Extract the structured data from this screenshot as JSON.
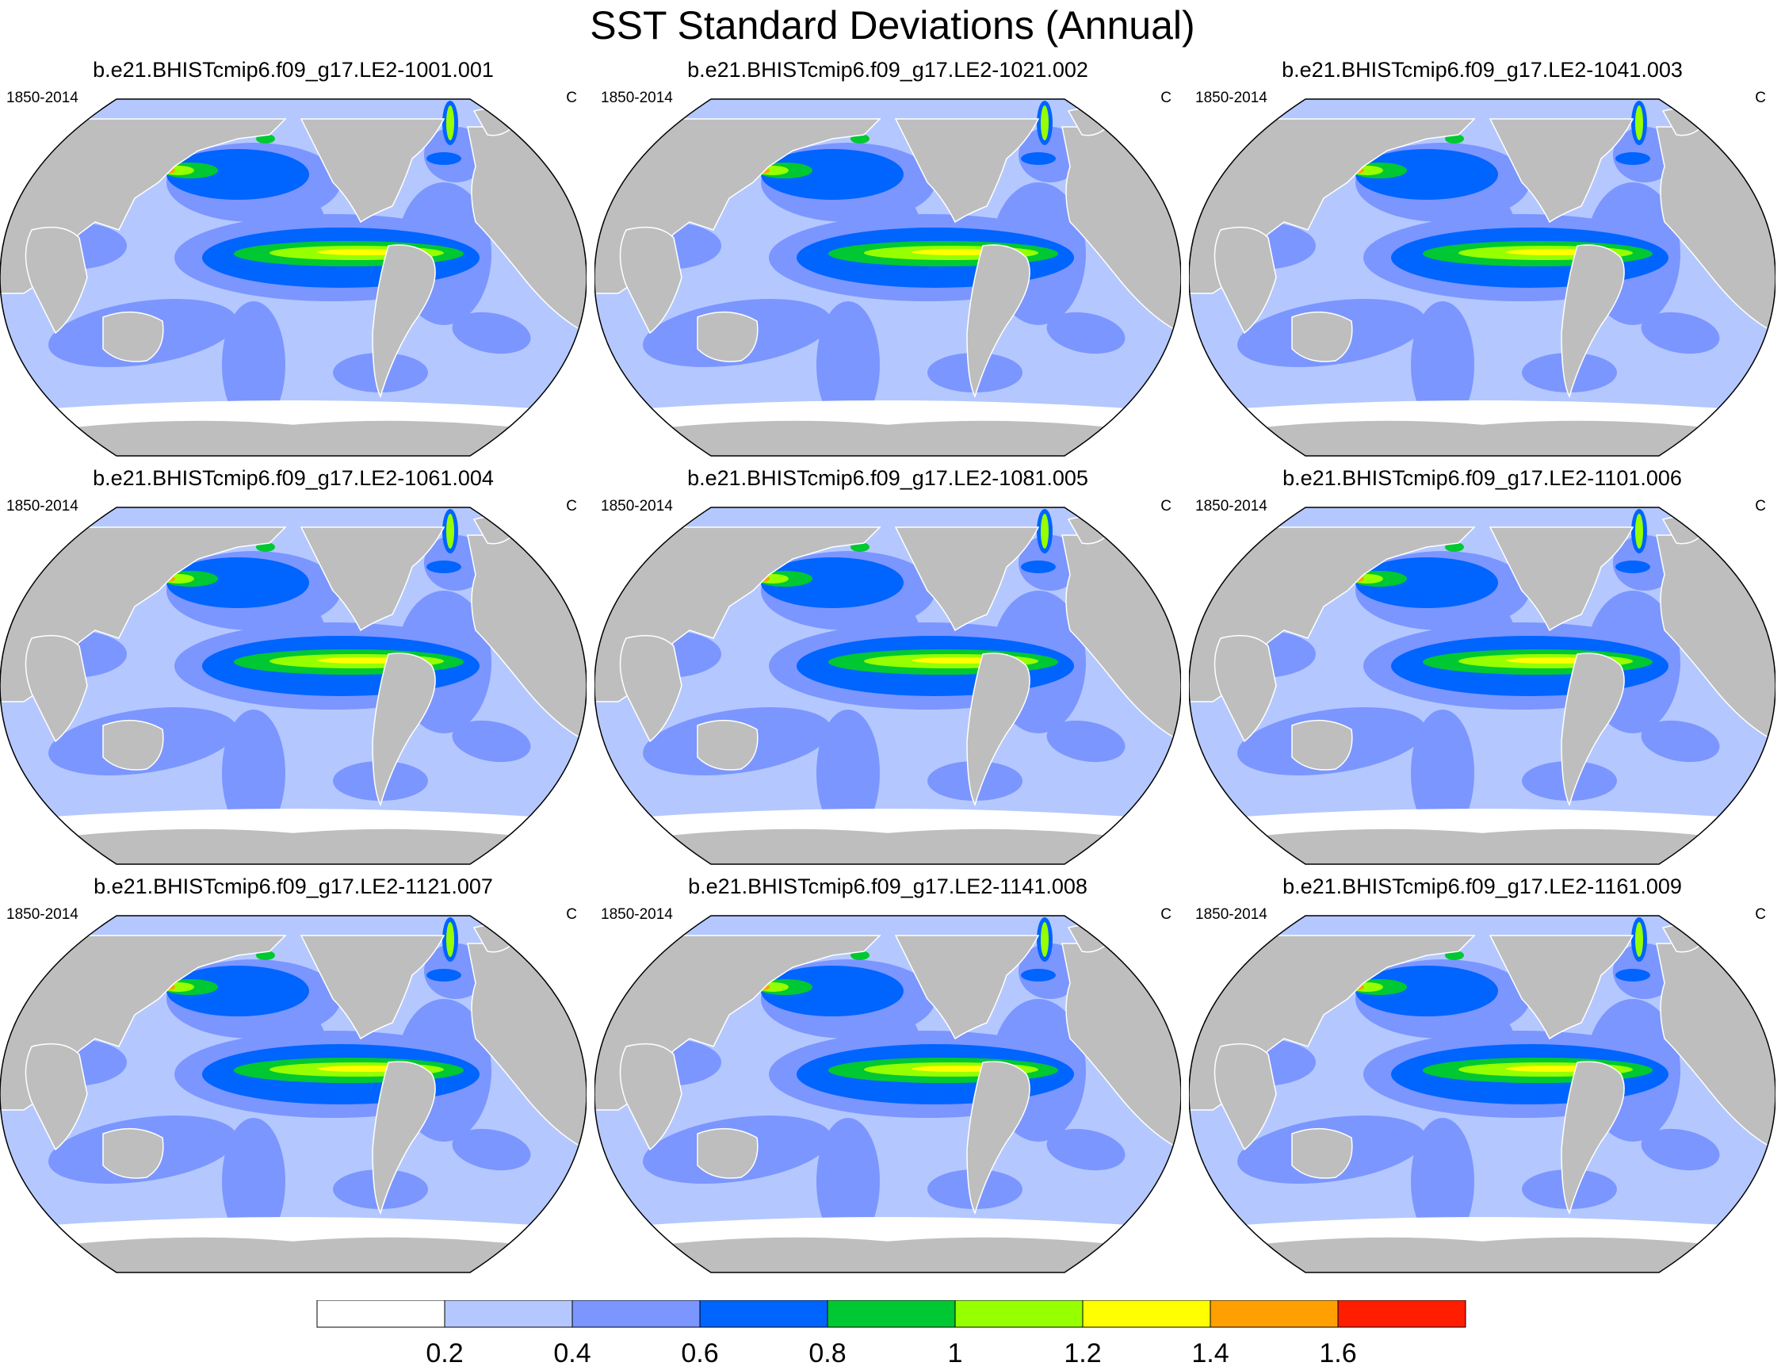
{
  "title": "SST Standard Deviations (Annual)",
  "panels": [
    {
      "name": "b.e21.BHISTcmip6.f09_g17.LE2-1001.001",
      "period": "1850-2014",
      "units": "C"
    },
    {
      "name": "b.e21.BHISTcmip6.f09_g17.LE2-1021.002",
      "period": "1850-2014",
      "units": "C"
    },
    {
      "name": "b.e21.BHISTcmip6.f09_g17.LE2-1041.003",
      "period": "1850-2014",
      "units": "C"
    },
    {
      "name": "b.e21.BHISTcmip6.f09_g17.LE2-1061.004",
      "period": "1850-2014",
      "units": "C"
    },
    {
      "name": "b.e21.BHISTcmip6.f09_g17.LE2-1081.005",
      "period": "1850-2014",
      "units": "C"
    },
    {
      "name": "b.e21.BHISTcmip6.f09_g17.LE2-1101.006",
      "period": "1850-2014",
      "units": "C"
    },
    {
      "name": "b.e21.BHISTcmip6.f09_g17.LE2-1121.007",
      "period": "1850-2014",
      "units": "C"
    },
    {
      "name": "b.e21.BHISTcmip6.f09_g17.LE2-1141.008",
      "period": "1850-2014",
      "units": "C"
    },
    {
      "name": "b.e21.BHISTcmip6.f09_g17.LE2-1161.009",
      "period": "1850-2014",
      "units": "C"
    }
  ],
  "colorbar": {
    "labels": [
      "0.2",
      "0.4",
      "0.6",
      "0.8",
      "1",
      "1.2",
      "1.4",
      "1.6"
    ],
    "colors": [
      "#ffffff",
      "#b4c8ff",
      "#7b96ff",
      "#0064ff",
      "#00c832",
      "#96ff00",
      "#ffff00",
      "#ffa000",
      "#ff1e00"
    ]
  },
  "colors": {
    "land": "#bebebe",
    "ocean_base": "#b4c8ff"
  }
}
